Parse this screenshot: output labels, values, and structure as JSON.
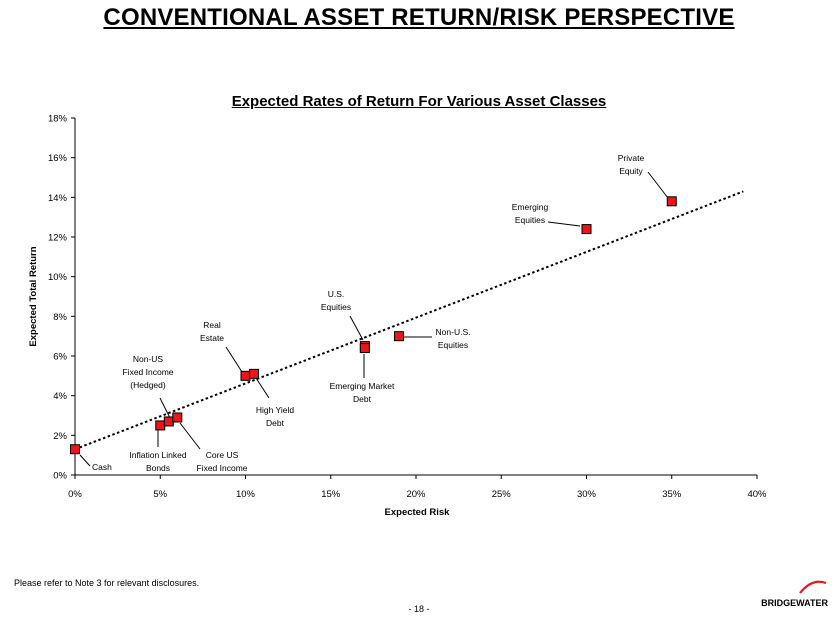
{
  "header": {
    "title": "CONVENTIONAL ASSET RETURN/RISK PERSPECTIVE"
  },
  "chart_data": {
    "type": "scatter",
    "title": "Expected Rates of Return For Various Asset Classes",
    "xlabel": "Expected Risk",
    "ylabel": "Expected Total Return",
    "xlim": [
      0,
      40
    ],
    "ylim": [
      0,
      18
    ],
    "x_ticks": [
      0,
      5,
      10,
      15,
      20,
      25,
      30,
      35,
      40
    ],
    "y_ticks": [
      0,
      2,
      4,
      6,
      8,
      10,
      12,
      14,
      16,
      18
    ],
    "x_tick_labels": [
      "0%",
      "5%",
      "10%",
      "15%",
      "20%",
      "25%",
      "30%",
      "35%",
      "40%"
    ],
    "y_tick_labels": [
      "0%",
      "2%",
      "4%",
      "6%",
      "8%",
      "10%",
      "12%",
      "14%",
      "16%",
      "18%"
    ],
    "grid": false,
    "marker_color": "#e8171c",
    "points": [
      {
        "label": "Cash",
        "x": 0,
        "y": 1.3
      },
      {
        "label": "Inflation Linked Bonds",
        "x": 5,
        "y": 2.5
      },
      {
        "label": "Non-US Fixed Income (Hedged)",
        "x": 5.5,
        "y": 2.7
      },
      {
        "label": "Core US Fixed Income",
        "x": 6,
        "y": 2.9
      },
      {
        "label": "Real Estate",
        "x": 10,
        "y": 5.0
      },
      {
        "label": "High Yield Debt",
        "x": 10.5,
        "y": 5.1
      },
      {
        "label": "U.S. Equities",
        "x": 17,
        "y": 6.5
      },
      {
        "label": "Emerging Market Debt",
        "x": 17,
        "y": 6.4
      },
      {
        "label": "Non-U.S. Equities",
        "x": 19,
        "y": 7.0
      },
      {
        "label": "Emerging Equities",
        "x": 30,
        "y": 12.4
      },
      {
        "label": "Private Equity",
        "x": 35,
        "y": 13.8
      }
    ],
    "trendline": {
      "style": "dotted",
      "from": [
        0,
        1.3
      ],
      "to": [
        39.2,
        14.3
      ]
    },
    "annotations": [
      {
        "lines": [
          "Cash"
        ]
      },
      {
        "lines": [
          "Inflation Linked",
          "Bonds"
        ]
      },
      {
        "lines": [
          "Non-US",
          "Fixed Income",
          "(Hedged)"
        ]
      },
      {
        "lines": [
          "Core US",
          "Fixed Income"
        ]
      },
      {
        "lines": [
          "Real",
          "Estate"
        ]
      },
      {
        "lines": [
          "High Yield",
          "Debt"
        ]
      },
      {
        "lines": [
          "U.S.",
          "Equities"
        ]
      },
      {
        "lines": [
          "Emerging Market",
          "Debt"
        ]
      },
      {
        "lines": [
          "Non-U.S.",
          "Equities"
        ]
      },
      {
        "lines": [
          "Emerging",
          "Equities"
        ]
      },
      {
        "lines": [
          "Private",
          "Equity"
        ]
      }
    ]
  },
  "footer": {
    "disclosure": "Please refer to Note 3 for relevant disclosures.",
    "page_number": "- 18 -",
    "brand": "BRIDGEWATER"
  }
}
